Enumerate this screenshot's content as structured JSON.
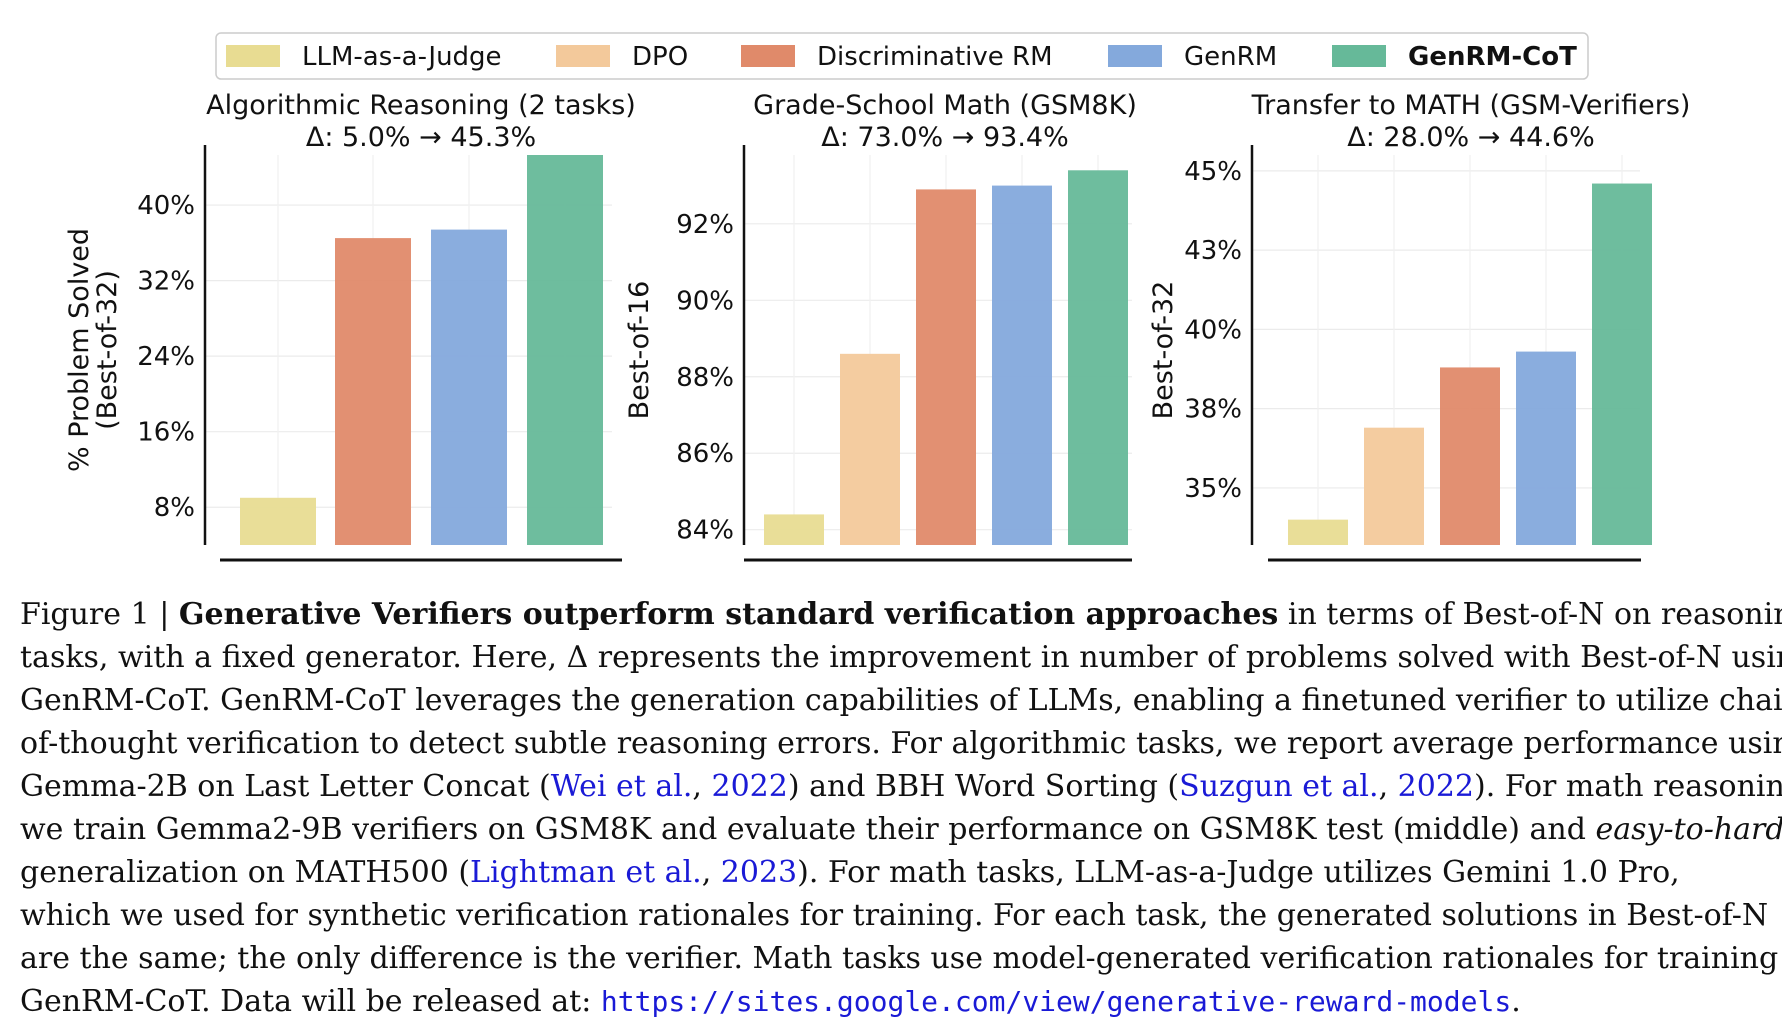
{
  "legend": {
    "entries": [
      {
        "label": "LLM-as-a-Judge",
        "color": "#e8dc92",
        "bold": false
      },
      {
        "label": "DPO",
        "color": "#f3c99b",
        "bold": false
      },
      {
        "label": "Discriminative RM",
        "color": "#e08a6a",
        "bold": false
      },
      {
        "label": "GenRM",
        "color": "#84a9dc",
        "bold": false
      },
      {
        "label": "GenRM-CoT",
        "color": "#66b999",
        "bold": true
      }
    ]
  },
  "chart_data": [
    {
      "type": "bar",
      "title": "Algorithmic Reasoning (2 tasks)",
      "subtitle": "Δ: 5.0% → 45.3%",
      "ylabel": [
        "% Problem Solved",
        "(Best-of-32)"
      ],
      "yticks": [
        8,
        16,
        24,
        32,
        40
      ],
      "ytick_labels": [
        "8%",
        "16%",
        "24%",
        "32%",
        "40%"
      ],
      "ylim": [
        4,
        45.3
      ],
      "categories": [
        "LLM-as-a-Judge",
        "Discriminative RM",
        "GenRM",
        "GenRM-CoT"
      ],
      "values": [
        9.0,
        36.5,
        37.4,
        45.3
      ],
      "colors": [
        "#e8dc92",
        "#e08a6a",
        "#84a9dc",
        "#66b999"
      ]
    },
    {
      "type": "bar",
      "title": "Grade-School Math (GSM8K)",
      "subtitle": "Δ: 73.0% → 93.4%",
      "ylabel": [
        "Best-of-16"
      ],
      "yticks": [
        84,
        86,
        88,
        90,
        92
      ],
      "ytick_labels": [
        "84%",
        "86%",
        "88%",
        "90%",
        "92%"
      ],
      "ylim": [
        83.6,
        93.8
      ],
      "categories": [
        "LLM-as-a-Judge",
        "DPO",
        "Discriminative RM",
        "GenRM",
        "GenRM-CoT"
      ],
      "values": [
        84.4,
        88.6,
        92.9,
        93.0,
        93.4
      ],
      "colors": [
        "#e8dc92",
        "#f3c99b",
        "#e08a6a",
        "#84a9dc",
        "#66b999"
      ]
    },
    {
      "type": "bar",
      "title": "Transfer to MATH (GSM-Verifiers)",
      "subtitle": "Δ: 28.0% → 44.6%",
      "ylabel": [
        "Best-of-32"
      ],
      "yticks": [
        35,
        37.5,
        40,
        42.5,
        45
      ],
      "ytick_labels": [
        "35%",
        "38%",
        "40%",
        "43%",
        "45%"
      ],
      "ylim": [
        33.2,
        45.5
      ],
      "categories": [
        "LLM-as-a-Judge",
        "DPO",
        "Discriminative RM",
        "GenRM",
        "GenRM-CoT"
      ],
      "values": [
        34.0,
        36.9,
        38.8,
        39.3,
        44.6
      ],
      "colors": [
        "#e8dc92",
        "#f3c99b",
        "#e08a6a",
        "#84a9dc",
        "#66b999"
      ]
    }
  ],
  "caption": {
    "l1_a": "Figure 1 | ",
    "l1_b": "Generative Verifiers outperform standard verification approaches",
    "l1_c": " in terms of Best-of-N on reasoning",
    "l2": "tasks, with a fixed generator. Here, Δ represents the improvement in number of problems solved with Best-of-N using",
    "l3": "GenRM-CoT. GenRM-CoT leverages the generation capabilities of LLMs, enabling a finetuned verifier to utilize chain-",
    "l4": "of-thought verification to detect subtle reasoning errors. For algorithmic tasks, we report average performance using",
    "l5_a": "Gemma-2B on Last Letter Concat (",
    "l5_cite1": "Wei et al.",
    "l5_sep1": ", ",
    "l5_year1": "2022",
    "l5_b": ") and BBH Word Sorting (",
    "l5_cite2": "Suzgun et al.",
    "l5_sep2": ", ",
    "l5_year2": "2022",
    "l5_c": "). For math reasoning,",
    "l6_a": "we train Gemma2-9B verifiers on GSM8K and evaluate their performance on GSM8K test (middle) and ",
    "l6_i": "easy-to-hard",
    "l7_a": "generalization on MATH500 (",
    "l7_cite": "Lightman et al.",
    "l7_sep": ", ",
    "l7_year": "2023",
    "l7_b": "). For math tasks, LLM-as-a-Judge utilizes Gemini 1.0 Pro,",
    "l8": "which we used for synthetic verification rationales for training. For each task, the generated solutions in Best-of-N",
    "l9": "are the same; the only difference is the verifier. Math tasks use model-generated verification rationales for training",
    "l10_a": "GenRM-CoT. Data will be released at: ",
    "l10_url": "https://sites.google.com/view/generative-reward-models",
    "l10_b": "."
  }
}
